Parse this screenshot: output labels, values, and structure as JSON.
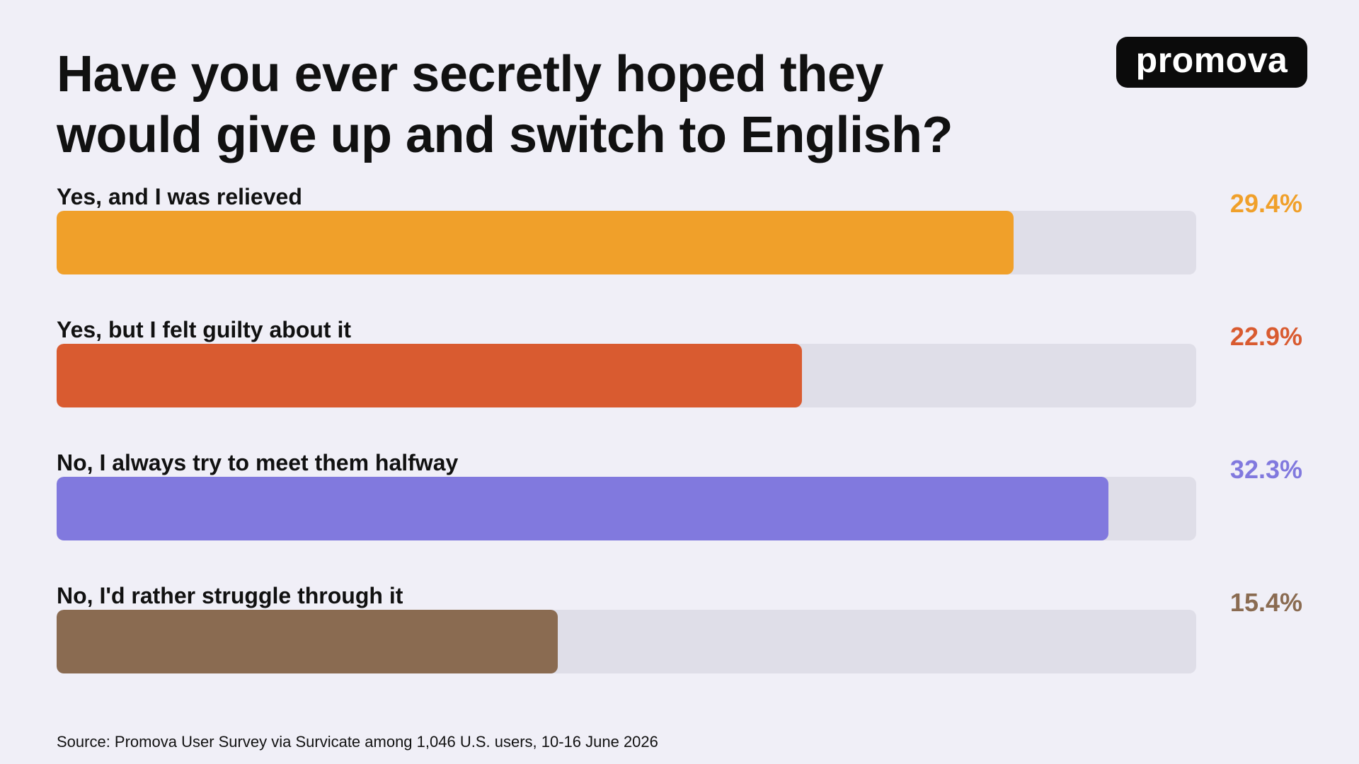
{
  "header": {
    "title": "Have you ever secretly hoped they would give up and switch to English?",
    "logo_text": "promova"
  },
  "source": "Source: Promova User Survey via Survicate among 1,046 U.S. users, 10-16 June 2026",
  "chart_data": {
    "type": "bar",
    "orientation": "horizontal",
    "title": "Have you ever secretly hoped they would give up and switch to English?",
    "xlim": [
      0,
      35
    ],
    "grid": false,
    "categories": [
      "Yes, and I was relieved",
      "Yes, but I felt guilty about it",
      "No, I always try to meet them halfway",
      "No, I'd rather struggle through it"
    ],
    "values": [
      29.4,
      22.9,
      32.3,
      15.4
    ],
    "value_labels": [
      "29.4%",
      "22.9%",
      "32.3%",
      "15.4%"
    ],
    "colors": [
      "#f0a02a",
      "#d95b30",
      "#8179de",
      "#8a6b51"
    ],
    "track_color": "#dfdee8"
  }
}
